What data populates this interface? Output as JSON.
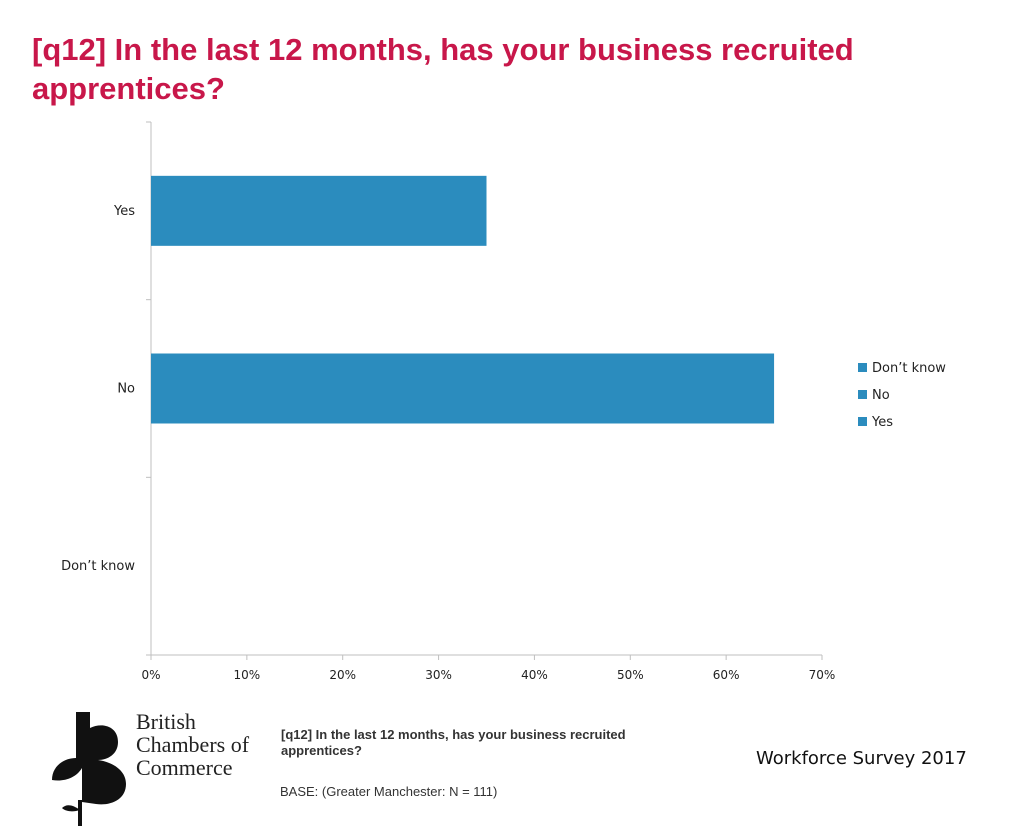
{
  "title": "[q12] In the last 12 months, has your business recruited apprentices?",
  "chart_data": {
    "type": "bar",
    "orientation": "horizontal",
    "categories": [
      "Yes",
      "No",
      "Don’t know"
    ],
    "values": [
      35,
      65,
      0
    ],
    "xlim": [
      0,
      70
    ],
    "xticks": [
      0,
      10,
      20,
      30,
      40,
      50,
      60,
      70
    ],
    "tick_format": "{v}%",
    "legend": {
      "position": "right",
      "entries": [
        "Don’t know",
        "No",
        "Yes"
      ]
    },
    "bar_color": "#2b8cbe",
    "grid": false
  },
  "footer": {
    "question": "[q12] In the last 12 months, has your business recruited apprentices?",
    "base": "BASE: (Greater Manchester: N = 111)",
    "survey": "Workforce Survey 2017"
  },
  "logo": {
    "lines": [
      "British",
      "Chambers of",
      "Commerce"
    ],
    "icon": "bcc-leaf-b-logo-icon"
  },
  "colors": {
    "title": "#c8174a",
    "bar": "#2b8cbe",
    "axis": "#bfbfbf"
  }
}
